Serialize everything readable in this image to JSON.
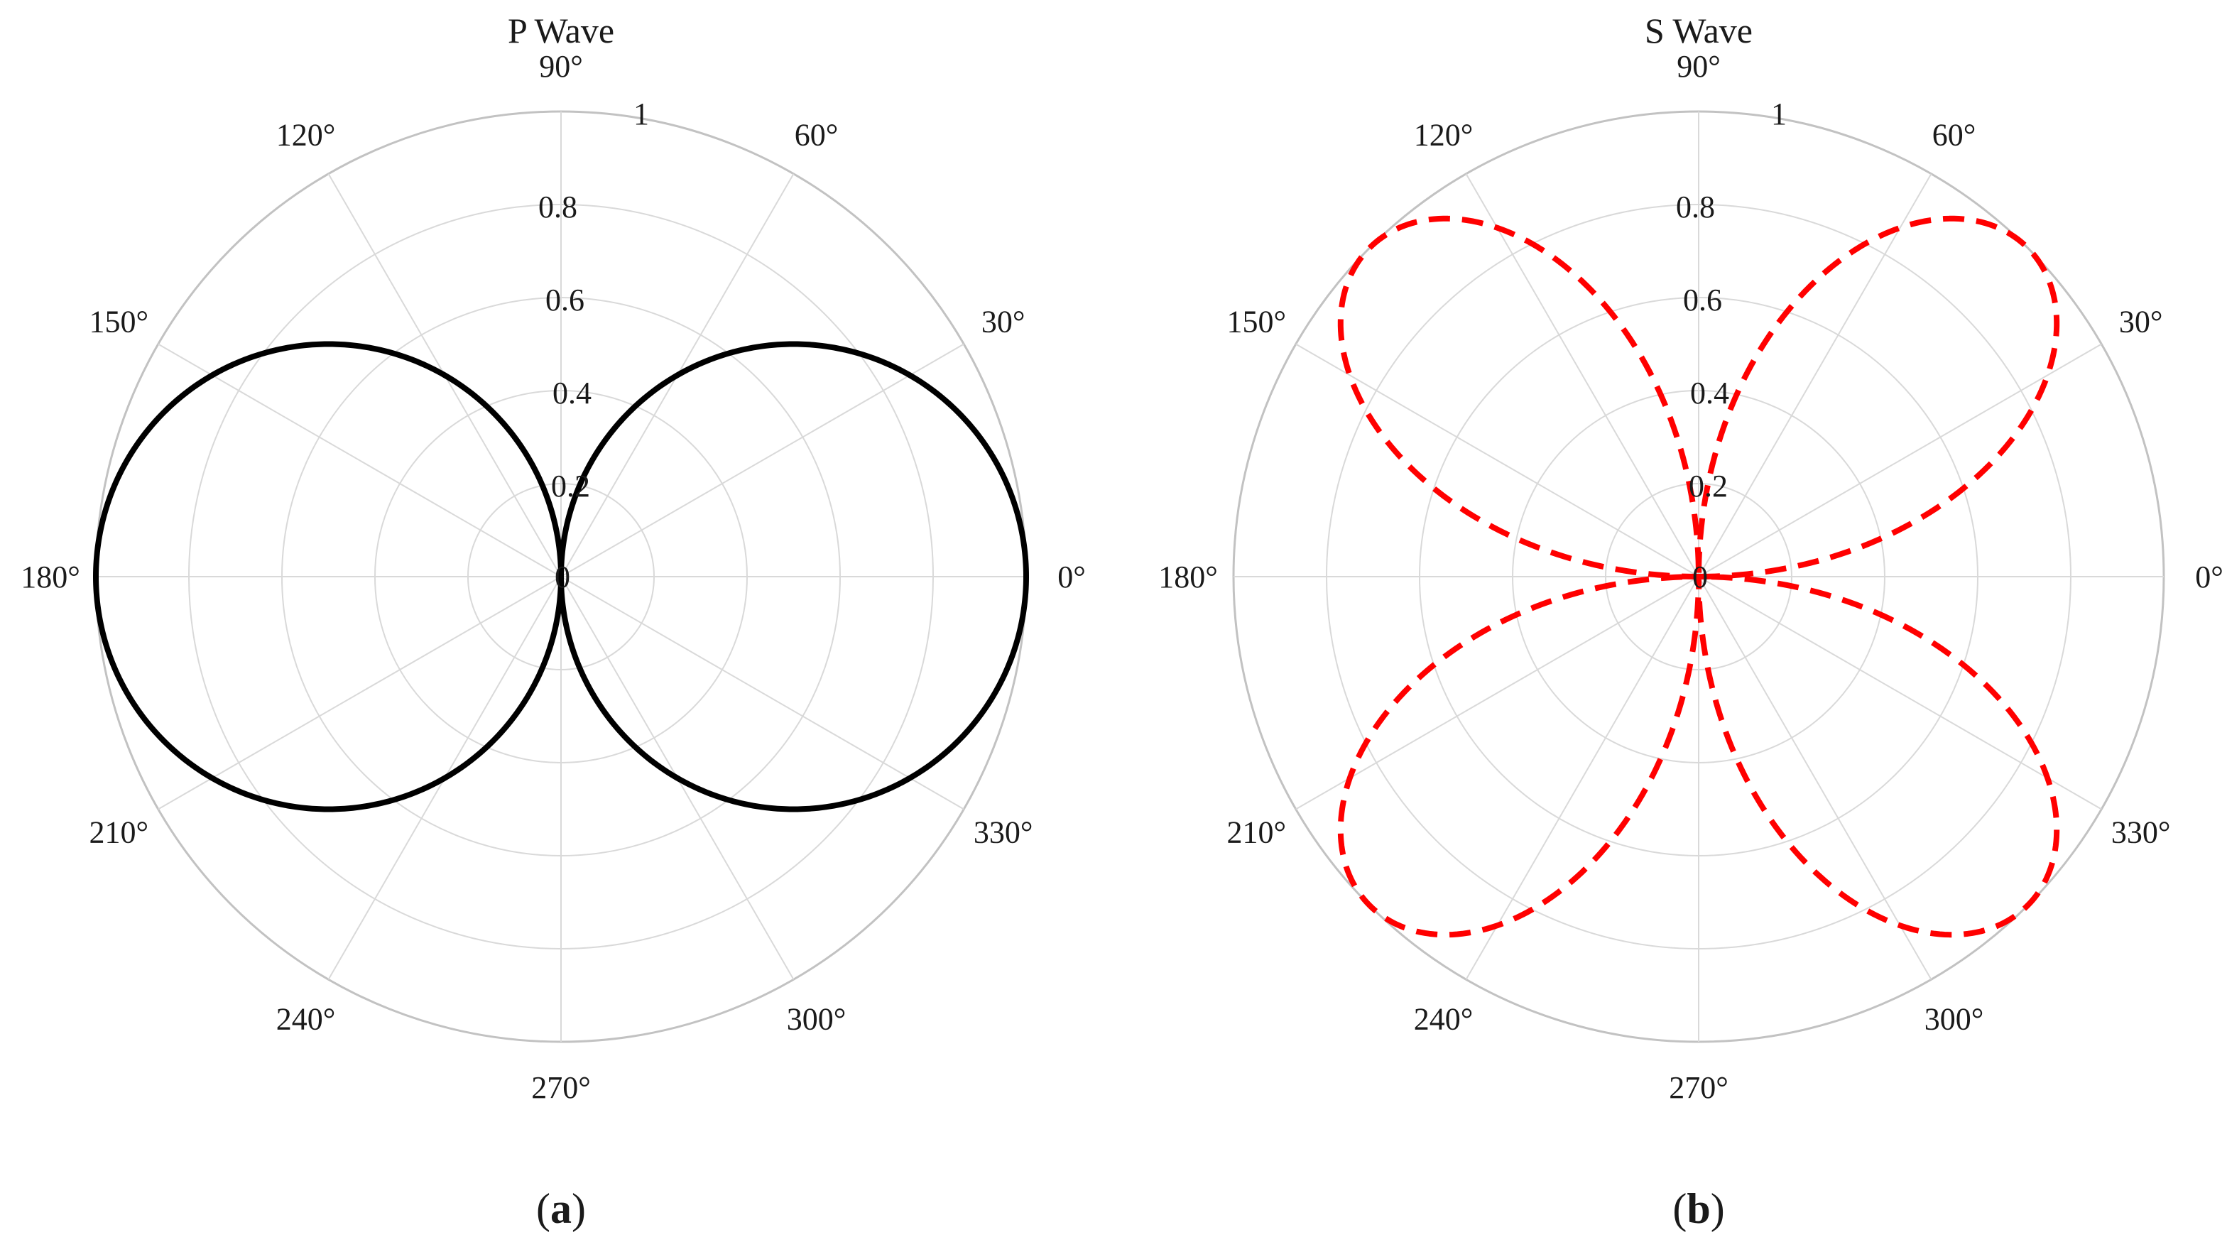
{
  "colors": {
    "p_wave": "#000000",
    "s_wave": "#ff0000",
    "grid": "#d9d9d9"
  },
  "chart_data": [
    {
      "type": "line",
      "subtype": "polar",
      "title": "P Wave",
      "caption": {
        "open": "(",
        "letter": "a",
        "close": ")"
      },
      "theta_ticks": [
        "0°",
        "30°",
        "60°",
        "90°",
        "120°",
        "150°",
        "180°",
        "210°",
        "240°",
        "270°",
        "300°",
        "330°"
      ],
      "theta_tick_values_deg": [
        0,
        30,
        60,
        90,
        120,
        150,
        180,
        210,
        240,
        270,
        300,
        330
      ],
      "r_ticks": [
        "0",
        "0.2",
        "0.4",
        "0.6",
        "0.8",
        "1"
      ],
      "r_tick_values": [
        0,
        0.2,
        0.4,
        0.6,
        0.8,
        1
      ],
      "rlim": [
        0,
        1
      ],
      "grid": true,
      "series": [
        {
          "formula": "r = |cos(theta)|",
          "line_style": "solid",
          "color": "#000000",
          "theta_deg": [
            0,
            15,
            30,
            45,
            60,
            75,
            90,
            105,
            120,
            135,
            150,
            165,
            180,
            195,
            210,
            225,
            240,
            255,
            270,
            285,
            300,
            315,
            330,
            345,
            360
          ],
          "r": [
            1,
            0.966,
            0.866,
            0.707,
            0.5,
            0.259,
            0,
            0.259,
            0.5,
            0.707,
            0.866,
            0.966,
            1,
            0.966,
            0.866,
            0.707,
            0.5,
            0.259,
            0,
            0.259,
            0.5,
            0.707,
            0.866,
            0.966,
            1
          ]
        }
      ]
    },
    {
      "type": "line",
      "subtype": "polar",
      "title": "S Wave",
      "caption": {
        "open": "(",
        "letter": "b",
        "close": ")"
      },
      "theta_ticks": [
        "0°",
        "30°",
        "60°",
        "90°",
        "120°",
        "150°",
        "180°",
        "210°",
        "240°",
        "270°",
        "300°",
        "330°"
      ],
      "theta_tick_values_deg": [
        0,
        30,
        60,
        90,
        120,
        150,
        180,
        210,
        240,
        270,
        300,
        330
      ],
      "r_ticks": [
        "0",
        "0.2",
        "0.4",
        "0.6",
        "0.8",
        "1"
      ],
      "r_tick_values": [
        0,
        0.2,
        0.4,
        0.6,
        0.8,
        1
      ],
      "rlim": [
        0,
        1
      ],
      "grid": true,
      "series": [
        {
          "formula": "r = |sin(2*theta)|",
          "line_style": "dashed",
          "color": "#ff0000",
          "theta_deg": [
            0,
            15,
            30,
            45,
            60,
            75,
            90,
            105,
            120,
            135,
            150,
            165,
            180,
            195,
            210,
            225,
            240,
            255,
            270,
            285,
            300,
            315,
            330,
            345,
            360
          ],
          "r": [
            0,
            0.5,
            0.866,
            1,
            0.866,
            0.5,
            0,
            0.5,
            0.866,
            1,
            0.866,
            0.5,
            0,
            0.5,
            0.866,
            1,
            0.866,
            0.5,
            0,
            0.5,
            0.866,
            1,
            0.866,
            0.5,
            0
          ]
        }
      ]
    }
  ]
}
